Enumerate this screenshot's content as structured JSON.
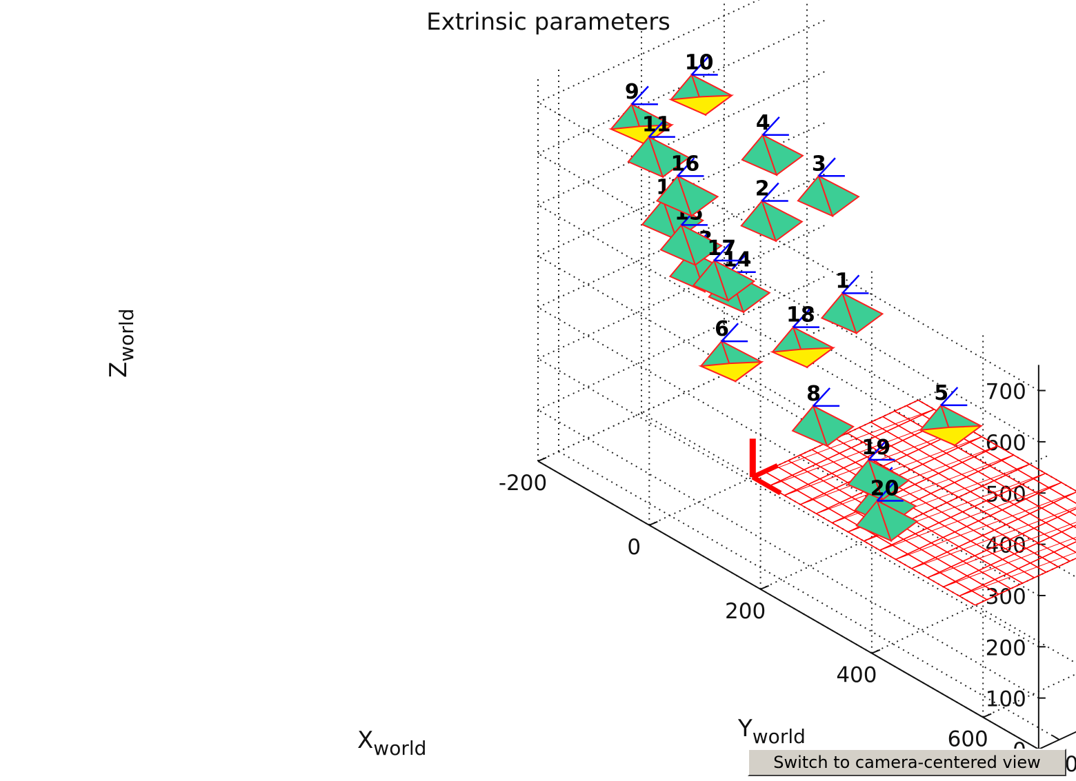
{
  "chart_data": {
    "type": "scatter",
    "subtype": "3d-camera-extrinsics",
    "title": "Extrinsic parameters",
    "xlabel": "X",
    "xlabel_sub": "world",
    "ylabel": "Y",
    "ylabel_sub": "world",
    "zlabel": "Z",
    "zlabel_sub": "world",
    "xlim": [
      -200,
      700
    ],
    "ylim": [
      -250,
      450
    ],
    "zlim": [
      0,
      750
    ],
    "xticks": [
      -200,
      0,
      200,
      400,
      600
    ],
    "yticks": [
      -200,
      0,
      200,
      400
    ],
    "zticks": [
      0,
      100,
      200,
      300,
      400,
      500,
      600,
      700
    ],
    "grid": true,
    "colors": {
      "camera_face": "#3cce95",
      "camera_edge": "#ff2020",
      "camera_front": "#ffee00",
      "optical_axis": "#0000ff",
      "checkerboard": "#ff0000",
      "grid": "#000000"
    },
    "checkerboard": {
      "x": [
        0,
        400
      ],
      "y": [
        0,
        400
      ],
      "z": 0
    },
    "cameras": [
      {
        "id": "1",
        "label": "1",
        "x": 20,
        "y": 190,
        "z": 300,
        "front": false
      },
      {
        "id": "2",
        "label": "2",
        "x": -80,
        "y": 130,
        "z": 440,
        "front": false
      },
      {
        "id": "3",
        "label": "3",
        "x": -60,
        "y": 240,
        "z": 460,
        "front": false
      },
      {
        "id": "4",
        "label": "4",
        "x": -220,
        "y": 320,
        "z": 410,
        "front": false
      },
      {
        "id": "5",
        "label": "5",
        "x": 160,
        "y": 240,
        "z": 150,
        "front": true
      },
      {
        "id": "6",
        "label": "6",
        "x": 130,
        "y": -250,
        "z": 440,
        "front": true
      },
      {
        "id": "7",
        "label": "7",
        "x": 370,
        "y": -200,
        "z": 290,
        "front": false
      },
      {
        "id": "8",
        "label": "8",
        "x": 280,
        "y": -230,
        "z": 400,
        "front": false
      },
      {
        "id": "9",
        "label": "9",
        "x": -210,
        "y": -10,
        "z": 600,
        "front": true
      },
      {
        "id": "10",
        "label": "10",
        "x": -80,
        "y": -40,
        "z": 750,
        "front": true
      },
      {
        "id": "11",
        "label": "11",
        "x": -60,
        "y": -170,
        "z": 690,
        "front": false
      },
      {
        "id": "12",
        "label": "12",
        "x": -20,
        "y": -190,
        "z": 600,
        "front": false
      },
      {
        "id": "13",
        "label": "13",
        "x": 30,
        "y": -190,
        "z": 530,
        "front": false
      },
      {
        "id": "14",
        "label": "14",
        "x": 70,
        "y": -150,
        "z": 500,
        "front": false
      },
      {
        "id": "15",
        "label": "15",
        "x": -50,
        "y": -105,
        "z": 500,
        "front": false
      },
      {
        "id": "16",
        "label": "16",
        "x": -120,
        "y": -20,
        "z": 520,
        "front": false
      },
      {
        "id": "17",
        "label": "17",
        "x": 20,
        "y": -120,
        "z": 480,
        "front": false
      },
      {
        "id": "18",
        "label": "18",
        "x": 110,
        "y": -50,
        "z": 380,
        "front": true
      },
      {
        "id": "19",
        "label": "19",
        "x": 320,
        "y": -150,
        "z": 290,
        "front": false
      },
      {
        "id": "20",
        "label": "20",
        "x": 380,
        "y": -210,
        "z": 270,
        "front": false
      }
    ]
  },
  "ui": {
    "switch_button_label": "Switch to camera-centered view"
  }
}
